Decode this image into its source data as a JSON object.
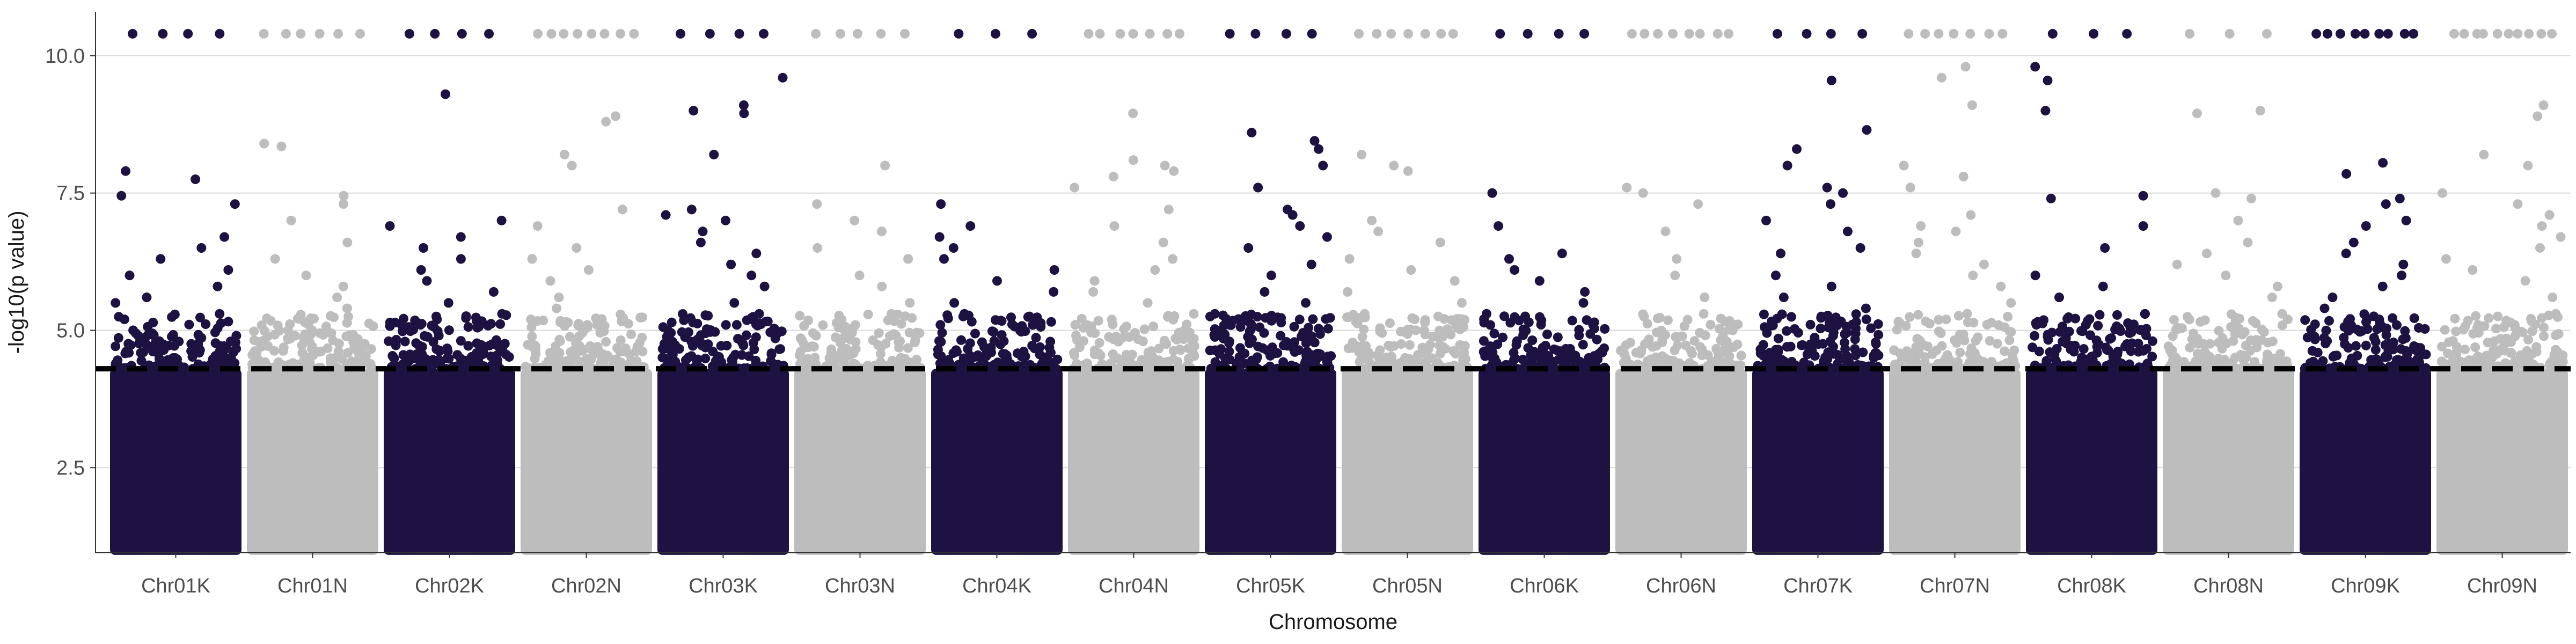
{
  "chart_data": {
    "type": "scatter",
    "title": "",
    "xlabel": "Chromosome",
    "ylabel": "-log10(p value)",
    "categories": [
      "Chr01K",
      "Chr01N",
      "Chr02K",
      "Chr02N",
      "Chr03K",
      "Chr03N",
      "Chr04K",
      "Chr04N",
      "Chr05K",
      "Chr05N",
      "Chr06K",
      "Chr06N",
      "Chr07K",
      "Chr07N",
      "Chr08K",
      "Chr08N",
      "Chr09K",
      "Chr09N"
    ],
    "ylim": [
      0.95,
      10.8
    ],
    "yticks": [
      2.5,
      5.0,
      7.5,
      10.0
    ],
    "ytick_labels": [
      "2.5",
      "5.0",
      "7.5",
      "10.0"
    ],
    "threshold": 4.3,
    "grid": true,
    "legend": "none",
    "colors": {
      "dark": "#1d1242",
      "light": "#bdbdbd",
      "threshold": "#000000",
      "grid": "#d9d9d9",
      "axis": "#333333"
    },
    "bulk_points": {
      "min_y": 1.0,
      "max_y": 4.3,
      "description_values": []
    },
    "top_points": [
      {
        "chr": "Chr01K",
        "y": [
          7.9,
          7.75,
          7.45,
          7.3,
          6.7,
          6.5,
          6.3,
          6.1,
          6.0,
          5.8,
          5.6,
          5.5,
          5.3,
          5.2,
          5.0
        ]
      },
      {
        "chr": "Chr01N",
        "y": [
          8.4,
          8.35,
          7.45,
          7.3,
          7.0,
          6.6,
          6.3,
          6.0,
          5.8,
          5.6,
          5.4,
          5.2,
          5.0
        ]
      },
      {
        "chr": "Chr02K",
        "y": [
          9.3,
          7.0,
          6.9,
          6.7,
          6.5,
          6.3,
          6.1,
          5.9,
          5.7,
          5.5,
          5.3,
          5.1
        ]
      },
      {
        "chr": "Chr02N",
        "y": [
          8.9,
          8.8,
          8.2,
          8.0,
          7.2,
          6.9,
          6.5,
          6.3,
          6.1,
          5.9,
          5.6,
          5.4,
          5.2,
          5.0
        ]
      },
      {
        "chr": "Chr03K",
        "y": [
          9.6,
          9.1,
          9.0,
          8.95,
          8.2,
          7.2,
          7.1,
          7.0,
          6.8,
          6.6,
          6.4,
          6.2,
          6.0,
          5.8,
          5.5,
          5.3,
          5.1
        ]
      },
      {
        "chr": "Chr03N",
        "y": [
          8.0,
          7.3,
          7.0,
          6.8,
          6.5,
          6.3,
          6.0,
          5.8,
          5.5,
          5.3,
          5.0
        ]
      },
      {
        "chr": "Chr04K",
        "y": [
          7.3,
          6.9,
          6.7,
          6.5,
          6.3,
          6.1,
          5.9,
          5.7,
          5.5,
          5.3,
          5.1
        ]
      },
      {
        "chr": "Chr04N",
        "y": [
          8.95,
          8.1,
          8.0,
          7.9,
          7.8,
          7.6,
          7.2,
          6.9,
          6.6,
          6.3,
          6.1,
          5.9,
          5.7,
          5.5,
          5.3,
          5.1
        ]
      },
      {
        "chr": "Chr05K",
        "y": [
          8.6,
          8.45,
          8.3,
          8.0,
          7.6,
          7.2,
          7.1,
          6.9,
          6.7,
          6.5,
          6.2,
          6.0,
          5.7,
          5.5,
          5.3,
          5.1
        ]
      },
      {
        "chr": "Chr05N",
        "y": [
          8.2,
          8.0,
          7.9,
          7.0,
          6.8,
          6.6,
          6.3,
          6.1,
          5.9,
          5.7,
          5.5,
          5.2
        ]
      },
      {
        "chr": "Chr06K",
        "y": [
          7.5,
          6.9,
          6.4,
          6.3,
          6.1,
          5.9,
          5.7,
          5.5,
          5.3,
          5.1
        ]
      },
      {
        "chr": "Chr06N",
        "y": [
          7.6,
          7.5,
          7.3,
          6.8,
          6.3,
          6.0,
          5.6,
          5.3,
          5.0
        ]
      },
      {
        "chr": "Chr07K",
        "y": [
          9.55,
          8.65,
          8.3,
          8.0,
          7.6,
          7.5,
          7.3,
          7.0,
          6.8,
          6.5,
          6.4,
          6.0,
          5.8,
          5.6,
          5.4,
          5.2
        ]
      },
      {
        "chr": "Chr07N",
        "y": [
          9.8,
          9.6,
          9.1,
          8.0,
          7.8,
          7.6,
          7.1,
          6.9,
          6.8,
          6.6,
          6.4,
          6.2,
          6.0,
          5.8,
          5.5,
          5.3
        ]
      },
      {
        "chr": "Chr08K",
        "y": [
          9.8,
          9.55,
          9.0,
          7.45,
          7.4,
          6.9,
          6.5,
          6.0,
          5.8,
          5.6,
          5.3,
          5.1
        ]
      },
      {
        "chr": "Chr08N",
        "y": [
          9.0,
          8.95,
          7.5,
          7.4,
          7.0,
          6.6,
          6.4,
          6.2,
          6.0,
          5.8,
          5.6,
          5.3
        ]
      },
      {
        "chr": "Chr09K",
        "y": [
          8.05,
          7.85,
          7.4,
          7.3,
          7.0,
          6.9,
          6.6,
          6.4,
          6.2,
          6.0,
          5.8,
          5.6,
          5.4,
          5.2
        ]
      },
      {
        "chr": "Chr09N",
        "y": [
          9.1,
          8.9,
          8.2,
          8.0,
          7.5,
          7.3,
          7.1,
          6.9,
          6.7,
          6.5,
          6.3,
          6.1,
          5.9,
          5.6,
          5.3,
          5.1
        ]
      }
    ],
    "capped_points": [
      {
        "chr": "Chr01K",
        "y": 10.4,
        "count": 4
      },
      {
        "chr": "Chr01N",
        "y": 10.4,
        "count": 6
      },
      {
        "chr": "Chr02K",
        "y": 10.4,
        "count": 4
      },
      {
        "chr": "Chr02N",
        "y": 10.4,
        "count": 8
      },
      {
        "chr": "Chr03K",
        "y": 10.4,
        "count": 4
      },
      {
        "chr": "Chr03N",
        "y": 10.4,
        "count": 5
      },
      {
        "chr": "Chr04K",
        "y": 10.4,
        "count": 3
      },
      {
        "chr": "Chr04N",
        "y": 10.4,
        "count": 7
      },
      {
        "chr": "Chr05K",
        "y": 10.4,
        "count": 4
      },
      {
        "chr": "Chr05N",
        "y": 10.4,
        "count": 7
      },
      {
        "chr": "Chr06K",
        "y": 10.4,
        "count": 4
      },
      {
        "chr": "Chr06N",
        "y": 10.4,
        "count": 8
      },
      {
        "chr": "Chr07K",
        "y": 10.4,
        "count": 4
      },
      {
        "chr": "Chr07N",
        "y": 10.4,
        "count": 7
      },
      {
        "chr": "Chr08K",
        "y": 10.4,
        "count": 3
      },
      {
        "chr": "Chr08N",
        "y": 10.4,
        "count": 3
      },
      {
        "chr": "Chr09K",
        "y": 10.4,
        "count": 9
      },
      {
        "chr": "Chr09N",
        "y": 10.4,
        "count": 10
      }
    ]
  }
}
